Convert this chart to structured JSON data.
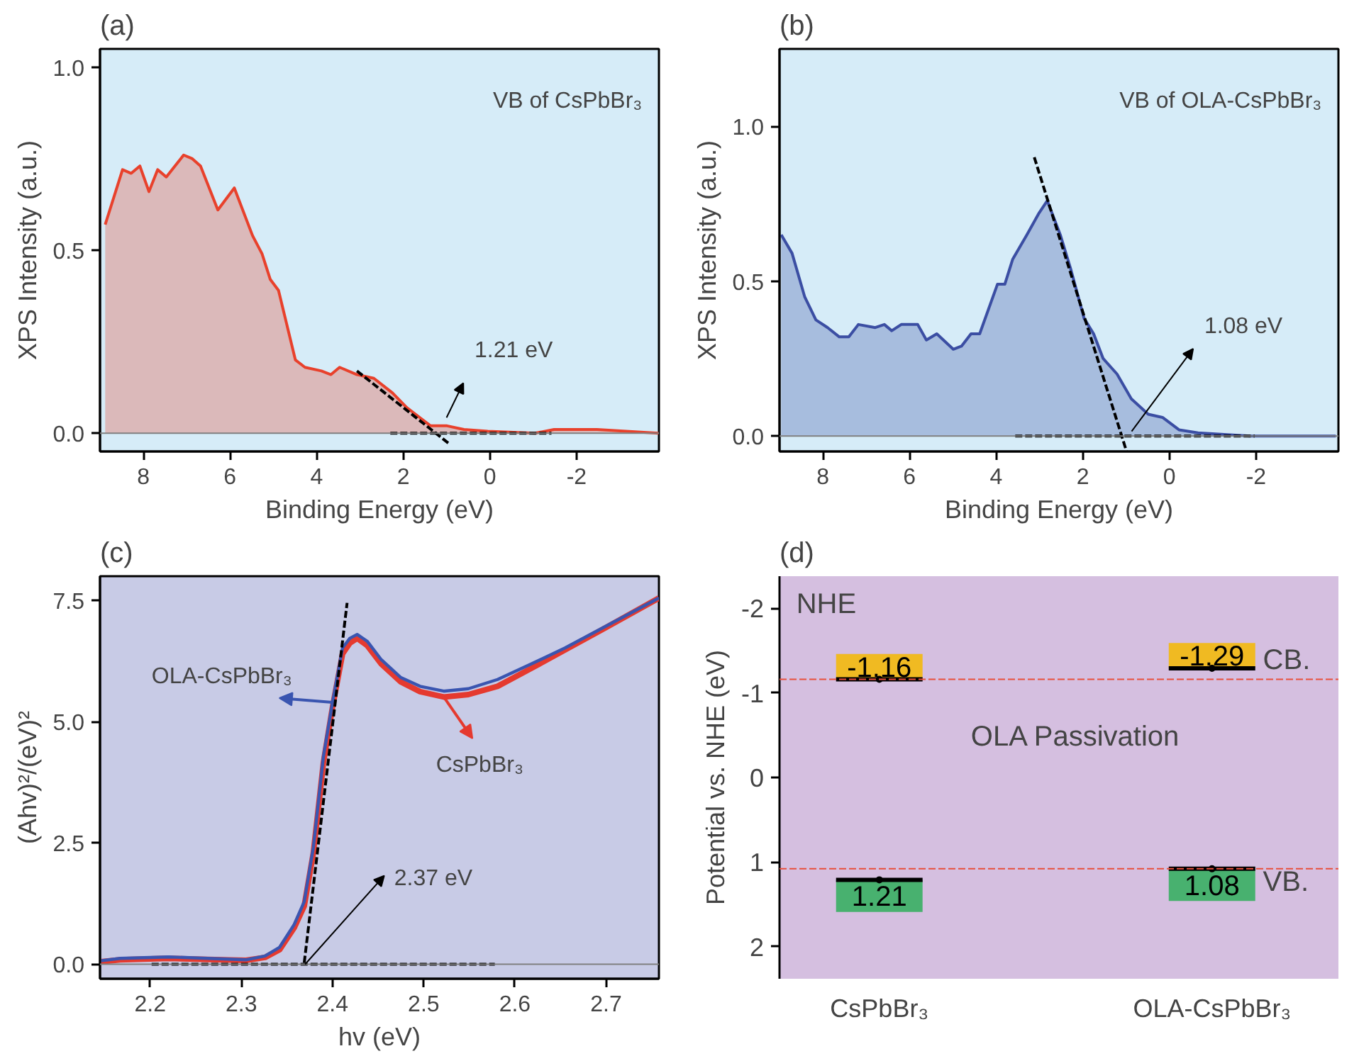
{
  "chart_data": [
    {
      "type": "area",
      "title": "(a)",
      "xlabel": "Binding Energy (eV)",
      "ylabel": "XPS Intensity (a.u.)",
      "xlim": [
        9,
        -3.9
      ],
      "ylim": [
        -0.05,
        1.05
      ],
      "xticks": [
        8,
        6,
        4,
        2,
        0,
        {
          "value": -2,
          "label": "-2"
        }
      ],
      "yticks": [
        {
          "value": 0,
          "label": "0.0"
        },
        {
          "value": 0.5,
          "label": "0.5"
        },
        {
          "value": 1,
          "label": "1.0"
        }
      ],
      "series": [
        {
          "type": "area",
          "color": "#e8412c",
          "x": [
            8.88,
            8.48,
            8.28,
            8.08,
            7.87,
            7.67,
            7.47,
            7.27,
            7.07,
            6.87,
            6.68,
            6.28,
            5.9,
            5.48,
            5.26,
            5.07,
            4.88,
            4.49,
            4.27,
            3.89,
            3.67,
            3.47,
            3.07,
            2.68,
            2.25,
            1.92,
            1.59,
            1.37,
            0.99,
            0.6,
            0.05,
            -1.04,
            -1.48,
            -2.47,
            -3.89
          ],
          "values": [
            0.57,
            0.72,
            0.71,
            0.73,
            0.66,
            0.72,
            0.7,
            0.73,
            0.76,
            0.75,
            0.73,
            0.61,
            0.67,
            0.54,
            0.49,
            0.42,
            0.39,
            0.2,
            0.18,
            0.17,
            0.16,
            0.18,
            0.16,
            0.15,
            0.11,
            0.07,
            0.04,
            0.02,
            0.02,
            0.01,
            0.005,
            0,
            0.01,
            0.01,
            0
          ]
        },
        {
          "type": "line",
          "line_style": "dashed",
          "color": "#000000",
          "x": [
            3.07,
            0.93
          ],
          "values": [
            0.17,
            -0.03
          ]
        },
        {
          "type": "line",
          "line_style": "dashed",
          "color": "#000000",
          "x": [
            2.3,
            -1.42
          ],
          "values": [
            0,
            0
          ]
        }
      ],
      "ref_lines": [
        {
          "axis": "y",
          "value": 0,
          "color": "#808080"
        }
      ],
      "annotations": [
        "VB of CsPbBr₃",
        "1.21 eV"
      ]
    },
    {
      "type": "area",
      "title": "(b)",
      "xlabel": "Binding Energy (eV)",
      "ylabel": "XPS Intensity (a.u.)",
      "xlim": [
        9,
        -3.9
      ],
      "ylim": [
        -0.05,
        1.25
      ],
      "xticks": [
        8,
        6,
        4,
        2,
        0,
        {
          "value": -2,
          "label": "-2"
        }
      ],
      "yticks": [
        {
          "value": 0,
          "label": "0.0"
        },
        {
          "value": 0.5,
          "label": "0.5"
        },
        {
          "value": 1,
          "label": "1.0"
        }
      ],
      "series": [
        {
          "type": "area",
          "color": "#3b4ea3",
          "x": [
            8.96,
            8.71,
            8.42,
            8.16,
            7.89,
            7.62,
            7.4,
            7.18,
            6.79,
            6.58,
            6.41,
            6.19,
            5.81,
            5.61,
            5.37,
            4.99,
            4.8,
            4.58,
            4.38,
            3.97,
            3.8,
            3.62,
            3.29,
            3.01,
            2.82,
            2.52,
            2.28,
            1.97,
            1.75,
            1.53,
            1.21,
            0.88,
            0.49,
            0.16,
            -0.22,
            -0.66,
            -1.86,
            -2.96,
            -3.84
          ],
          "values": [
            0.65,
            0.59,
            0.45,
            0.375,
            0.35,
            0.32,
            0.32,
            0.36,
            0.35,
            0.36,
            0.34,
            0.36,
            0.36,
            0.31,
            0.33,
            0.28,
            0.29,
            0.33,
            0.33,
            0.49,
            0.49,
            0.57,
            0.65,
            0.72,
            0.76,
            0.65,
            0.54,
            0.38,
            0.33,
            0.25,
            0.2,
            0.12,
            0.07,
            0.06,
            0.02,
            0.01,
            0,
            0,
            0
          ]
        },
        {
          "type": "line",
          "line_style": "dashed",
          "color": "#000000",
          "x": [
            3.12,
            0.99
          ],
          "values": [
            0.9,
            -0.05
          ]
        },
        {
          "type": "line",
          "line_style": "dashed",
          "color": "#000000",
          "x": [
            3.56,
            -1.97
          ],
          "values": [
            0,
            0
          ]
        }
      ],
      "ref_lines": [
        {
          "axis": "y",
          "value": 0,
          "color": "#808080"
        }
      ],
      "annotations": [
        "VB of OLA-CsPbBr₃",
        "1.08 eV"
      ]
    },
    {
      "type": "line",
      "title": "(c)",
      "xlabel": "hv (eV)",
      "ylabel": "(Ahv)²/(eV)²",
      "xlim": [
        2.145,
        2.758
      ],
      "ylim": [
        -0.3,
        8.0
      ],
      "xticks": [
        2.2,
        2.3,
        2.4,
        2.5,
        2.6,
        2.7
      ],
      "yticks": [
        {
          "value": 0,
          "label": "0.0"
        },
        2.5,
        {
          "value": 5,
          "label": "5.0"
        },
        7.5
      ],
      "series": [
        {
          "type": "line",
          "name": "CsPbBr₃",
          "color": "#e53a2f",
          "x": [
            2.146,
            2.167,
            2.22,
            2.263,
            2.305,
            2.326,
            2.342,
            2.358,
            2.369,
            2.379,
            2.39,
            2.4,
            2.411,
            2.419,
            2.427,
            2.438,
            2.453,
            2.475,
            2.496,
            2.522,
            2.549,
            2.581,
            2.618,
            2.655,
            2.697,
            2.758
          ],
          "values": [
            0.05,
            0.09,
            0.12,
            0.1,
            0.08,
            0.14,
            0.3,
            0.75,
            1.2,
            2.3,
            4.15,
            5.3,
            6.4,
            6.62,
            6.72,
            6.57,
            6.2,
            5.82,
            5.62,
            5.51,
            5.56,
            5.73,
            6.1,
            6.48,
            6.91,
            7.55
          ]
        },
        {
          "type": "line",
          "name": "OLA-CsPbBr₃",
          "color": "#3a55b0",
          "x": [
            2.146,
            2.167,
            2.22,
            2.263,
            2.305,
            2.326,
            2.342,
            2.358,
            2.369,
            2.379,
            2.39,
            2.4,
            2.411,
            2.419,
            2.427,
            2.438,
            2.453,
            2.475,
            2.496,
            2.522,
            2.549,
            2.581,
            2.618,
            2.655,
            2.697,
            2.758
          ],
          "values": [
            0.07,
            0.12,
            0.15,
            0.12,
            0.09,
            0.17,
            0.35,
            0.82,
            1.29,
            2.41,
            4.28,
            5.4,
            6.52,
            6.72,
            6.8,
            6.66,
            6.29,
            5.91,
            5.73,
            5.63,
            5.68,
            5.87,
            6.19,
            6.52,
            6.94,
            7.55
          ]
        },
        {
          "type": "line",
          "line_style": "dashed",
          "color": "#000000",
          "x": [
            2.369,
            2.416
          ],
          "values": [
            0.03,
            7.45
          ]
        },
        {
          "type": "line",
          "line_style": "dashed",
          "color": "#000000",
          "x": [
            2.2016,
            2.578
          ],
          "values": [
            0,
            0
          ]
        }
      ],
      "ref_lines": [
        {
          "axis": "y",
          "value": 0,
          "color": "#808080"
        }
      ],
      "annotations": [
        {
          "text": "2.37 eV",
          "x": 2.37,
          "y": 0
        }
      ]
    },
    {
      "type": "scatter",
      "title": "(d)",
      "ylabel": "Potential vs. NHE (eV)",
      "categories": [
        "CsPbBr₃",
        "OLA-CsPbBr₃"
      ],
      "ylim": [
        2.38,
        -2.38
      ],
      "yticks": [
        {
          "value": -2,
          "label": "-2"
        },
        {
          "value": -1,
          "label": "-1"
        },
        {
          "value": 0,
          "label": "0"
        },
        {
          "value": 1,
          "label": "1"
        },
        {
          "value": 2,
          "label": "2"
        }
      ],
      "data_labels": true,
      "series": [
        {
          "color": "#000000",
          "values": [
            -1.16,
            -1.29
          ]
        },
        {
          "color": "#000000",
          "values": [
            1.21,
            1.08
          ]
        }
      ],
      "ref_lines": [
        {
          "axis": "y",
          "value": -1.16,
          "color": "#e8503c",
          "line_style": "dashed"
        },
        {
          "axis": "y",
          "value": 1.08,
          "color": "#e8503c",
          "line_style": "dashed"
        }
      ],
      "annotations": [
        "NHE",
        "OLA Passivation",
        "CB.",
        "VB."
      ]
    }
  ]
}
